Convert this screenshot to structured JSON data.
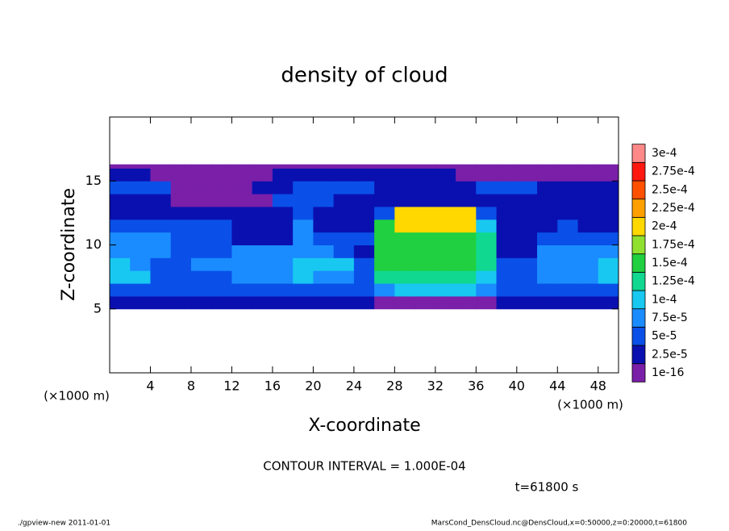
{
  "chart_data": {
    "type": "heatmap",
    "title": "density of cloud",
    "xlabel": "X-coordinate",
    "ylabel": "Z-coordinate",
    "x_unit": "(×1000 m)",
    "y_unit": "(×1000 m)",
    "annotation": "CONTOUR INTERVAL = 1.000E-04",
    "time_label": "t=61800 s",
    "footer_left": "./gpview-new  2011-01-01",
    "footer_right": "MarsCond_DensCloud.nc@DensCloud,x=0:50000,z=0:20000,t=61800",
    "xlim": [
      0,
      50
    ],
    "ylim": [
      0,
      20
    ],
    "xticks": [
      4,
      8,
      12,
      16,
      20,
      24,
      28,
      32,
      36,
      40,
      44,
      48
    ],
    "yticks": [
      5,
      10,
      15
    ],
    "xbins": [
      0,
      2,
      4,
      6,
      8,
      10,
      12,
      14,
      16,
      18,
      20,
      22,
      24,
      26,
      28,
      30,
      32,
      34,
      36,
      38,
      40,
      42,
      44,
      46,
      48,
      50
    ],
    "ybins": [
      5,
      6,
      7,
      8,
      9,
      10,
      11,
      12,
      13,
      14,
      15,
      16,
      16.3
    ],
    "values": [
      [
        3e-05,
        3e-05,
        3e-05,
        3e-05,
        3e-05,
        3e-05,
        3e-05,
        3e-05,
        3e-05,
        3e-05,
        3e-05,
        3e-05,
        3e-05,
        1e-05,
        1e-05,
        1e-05,
        1e-05,
        1e-05,
        1e-05,
        3e-05,
        3e-05,
        3e-05,
        3e-05,
        3e-05,
        3e-05
      ],
      [
        6e-05,
        6e-05,
        6e-05,
        6e-05,
        6e-05,
        6e-05,
        6e-05,
        6e-05,
        6e-05,
        6e-05,
        6e-05,
        6e-05,
        6e-05,
        8e-05,
        0.00012,
        0.00012,
        0.00012,
        0.00012,
        8e-05,
        6e-05,
        6e-05,
        6e-05,
        6e-05,
        6e-05,
        6e-05
      ],
      [
        0.00011,
        0.00011,
        6e-05,
        6e-05,
        6e-05,
        6e-05,
        8e-05,
        8e-05,
        8e-05,
        0.00011,
        8e-05,
        8e-05,
        6e-05,
        0.00014,
        0.00014,
        0.00014,
        0.00014,
        0.00014,
        0.00012,
        6e-05,
        6e-05,
        8e-05,
        8e-05,
        8e-05,
        0.000105
      ],
      [
        0.00011,
        8e-05,
        6e-05,
        6e-05,
        8e-05,
        8e-05,
        8e-05,
        8e-05,
        8e-05,
        0.00011,
        0.00011,
        0.00011,
        6e-05,
        0.00015,
        0.00015,
        0.00015,
        0.00015,
        0.00015,
        0.00013,
        6e-05,
        6e-05,
        8e-05,
        8e-05,
        8e-05,
        0.00011
      ],
      [
        8e-05,
        8e-05,
        8e-05,
        6e-05,
        6e-05,
        6e-05,
        8e-05,
        8e-05,
        8e-05,
        8e-05,
        8e-05,
        6e-05,
        3e-05,
        0.00015,
        0.00016,
        0.00016,
        0.00016,
        0.00016,
        0.00014,
        3e-05,
        3e-05,
        8e-05,
        8e-05,
        8e-05,
        8e-05
      ],
      [
        8e-05,
        8e-05,
        8e-05,
        6e-05,
        6e-05,
        6e-05,
        3e-05,
        3e-05,
        3e-05,
        8e-05,
        6e-05,
        6e-05,
        6e-05,
        0.00015,
        0.00017,
        0.00017,
        0.00017,
        0.00017,
        0.00013,
        3e-05,
        3e-05,
        6e-05,
        6e-05,
        6e-05,
        6e-05
      ],
      [
        6e-05,
        6e-05,
        6e-05,
        6e-05,
        6e-05,
        6e-05,
        3e-05,
        3e-05,
        3e-05,
        8e-05,
        3e-05,
        3e-05,
        3e-05,
        0.00015,
        0.00021,
        0.00021,
        0.00021,
        0.00021,
        0.00012,
        3e-05,
        3e-05,
        3e-05,
        6e-05,
        3e-05,
        3e-05
      ],
      [
        3e-05,
        3e-05,
        3e-05,
        3e-05,
        3e-05,
        3e-05,
        3e-05,
        3e-05,
        3e-05,
        6e-05,
        3e-05,
        3e-05,
        3e-05,
        6e-05,
        0.0002,
        0.0002,
        0.0002,
        0.0002,
        6e-05,
        3e-05,
        3e-05,
        3e-05,
        3e-05,
        3e-05,
        3e-05
      ],
      [
        3e-05,
        3e-05,
        3e-05,
        1e-05,
        1e-05,
        1e-05,
        1e-05,
        1e-05,
        6e-05,
        6e-05,
        6e-05,
        3e-05,
        3e-05,
        3e-05,
        3e-05,
        3e-05,
        3e-05,
        3e-05,
        3e-05,
        3e-05,
        3e-05,
        3e-05,
        3e-05,
        3e-05,
        3e-05
      ],
      [
        6e-05,
        6e-05,
        6e-05,
        1e-05,
        1e-05,
        1e-05,
        1e-05,
        3e-05,
        3e-05,
        6e-05,
        6e-05,
        6e-05,
        6e-05,
        3e-05,
        3e-05,
        3e-05,
        3e-05,
        3e-05,
        6e-05,
        6e-05,
        6e-05,
        3e-05,
        3e-05,
        3e-05,
        3e-05
      ],
      [
        3e-05,
        3e-05,
        1e-05,
        1e-05,
        1e-05,
        1e-05,
        1e-05,
        1e-05,
        3e-05,
        3e-05,
        3e-05,
        3e-05,
        3e-05,
        3e-05,
        3e-05,
        3e-05,
        3e-05,
        1e-05,
        1e-05,
        1e-05,
        1e-05,
        1e-05,
        1e-05,
        1e-05,
        1e-05
      ],
      [
        1e-05,
        1e-05,
        1e-05,
        1e-05,
        1e-05,
        1e-05,
        1e-05,
        1e-05,
        1e-05,
        1e-05,
        1e-05,
        1e-05,
        1e-05,
        1e-05,
        1e-05,
        1e-05,
        1e-05,
        1e-05,
        1e-05,
        1e-05,
        1e-05,
        1e-05,
        1e-05,
        1e-05,
        1e-05
      ]
    ],
    "levels": [
      {
        "value": 1e-16,
        "label": "1e-16"
      },
      {
        "value": 2.5e-05,
        "label": "2.5e-5"
      },
      {
        "value": 5e-05,
        "label": "5e-5"
      },
      {
        "value": 7.5e-05,
        "label": "7.5e-5"
      },
      {
        "value": 0.0001,
        "label": "1e-4"
      },
      {
        "value": 0.000125,
        "label": "1.25e-4"
      },
      {
        "value": 0.00015,
        "label": "1.5e-4"
      },
      {
        "value": 0.000175,
        "label": "1.75e-4"
      },
      {
        "value": 0.0002,
        "label": "2e-4"
      },
      {
        "value": 0.000225,
        "label": "2.25e-4"
      },
      {
        "value": 0.00025,
        "label": "2.5e-4"
      },
      {
        "value": 0.000275,
        "label": "2.75e-4"
      },
      {
        "value": 0.0003,
        "label": "3e-4"
      }
    ],
    "colors": [
      "#7a1fa8",
      "#0a10b0",
      "#0a50e8",
      "#1a8cff",
      "#18c8f0",
      "#10d890",
      "#20d040",
      "#90e030",
      "#ffd800",
      "#ffa000",
      "#ff5000",
      "#ff1810",
      "#ff8888"
    ]
  }
}
